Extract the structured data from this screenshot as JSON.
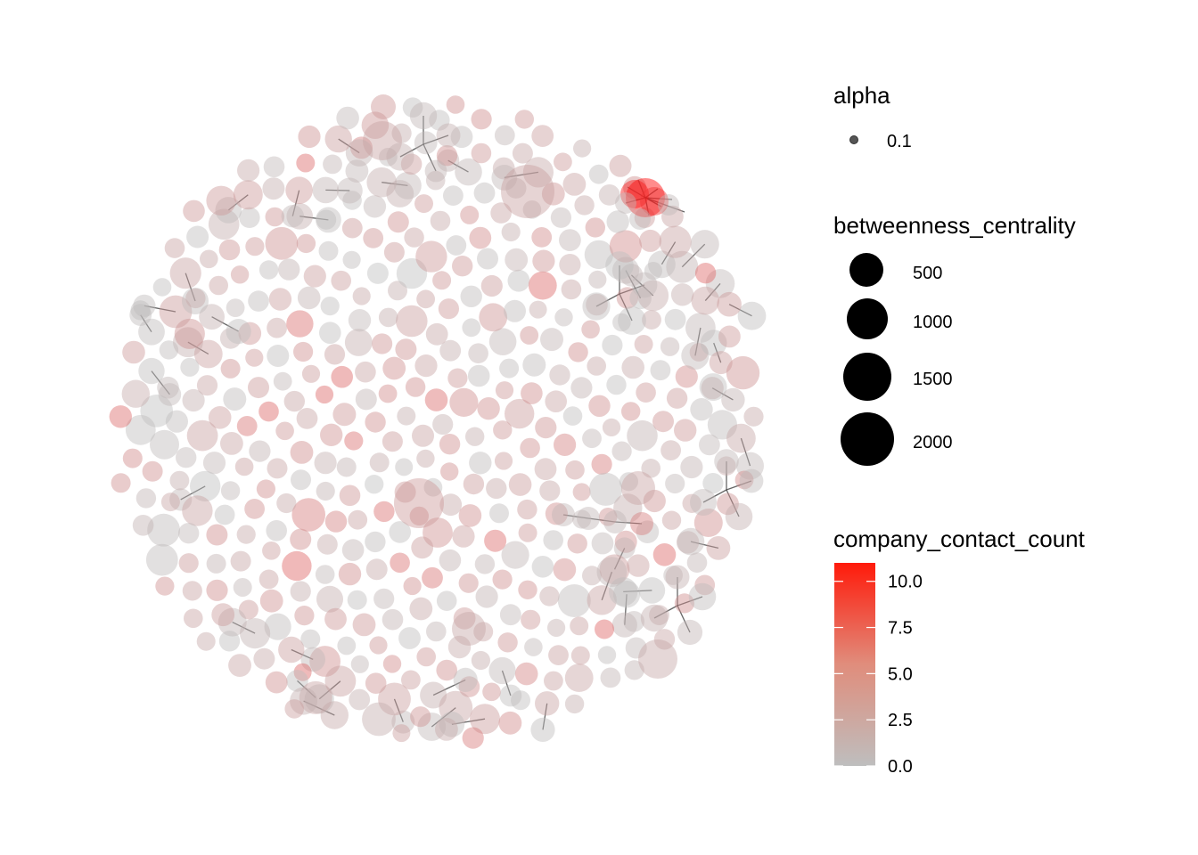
{
  "chart_data": {
    "type": "scatter",
    "subtype": "network graph (force layout)",
    "title": "",
    "xlabel": "",
    "ylabel": "",
    "grid": false,
    "legend_position": "right",
    "node_count_approx": 470,
    "edge_count_approx": 60,
    "colors": {
      "low": "#bebebe",
      "high": "#ff0000",
      "edge": "#333333",
      "background": "#ffffff"
    },
    "legends": {
      "alpha": {
        "title": "alpha",
        "entries": [
          {
            "label": "0.1",
            "value": 0.1
          }
        ]
      },
      "size": {
        "title": "betweenness_centrality",
        "breaks": [
          500,
          1000,
          1500,
          2000
        ],
        "labels": [
          "500",
          "1000",
          "1500",
          "2000"
        ]
      },
      "color": {
        "title": "company_contact_count",
        "breaks": [
          0.0,
          2.5,
          5.0,
          7.5,
          10.0
        ],
        "labels": [
          "0.0",
          "2.5",
          "5.0",
          "7.5",
          "10.0"
        ],
        "range": [
          0,
          11
        ]
      }
    },
    "notable_nodes": [
      {
        "description": "largest node near center",
        "betweenness_centrality": 2000,
        "company_contact_count": 2
      },
      {
        "description": "red hub cluster at upper right",
        "betweenness_centrality": 1200,
        "company_contact_count": 11
      },
      {
        "description": "large node at top",
        "betweenness_centrality": 1500,
        "company_contact_count": 1
      }
    ]
  }
}
